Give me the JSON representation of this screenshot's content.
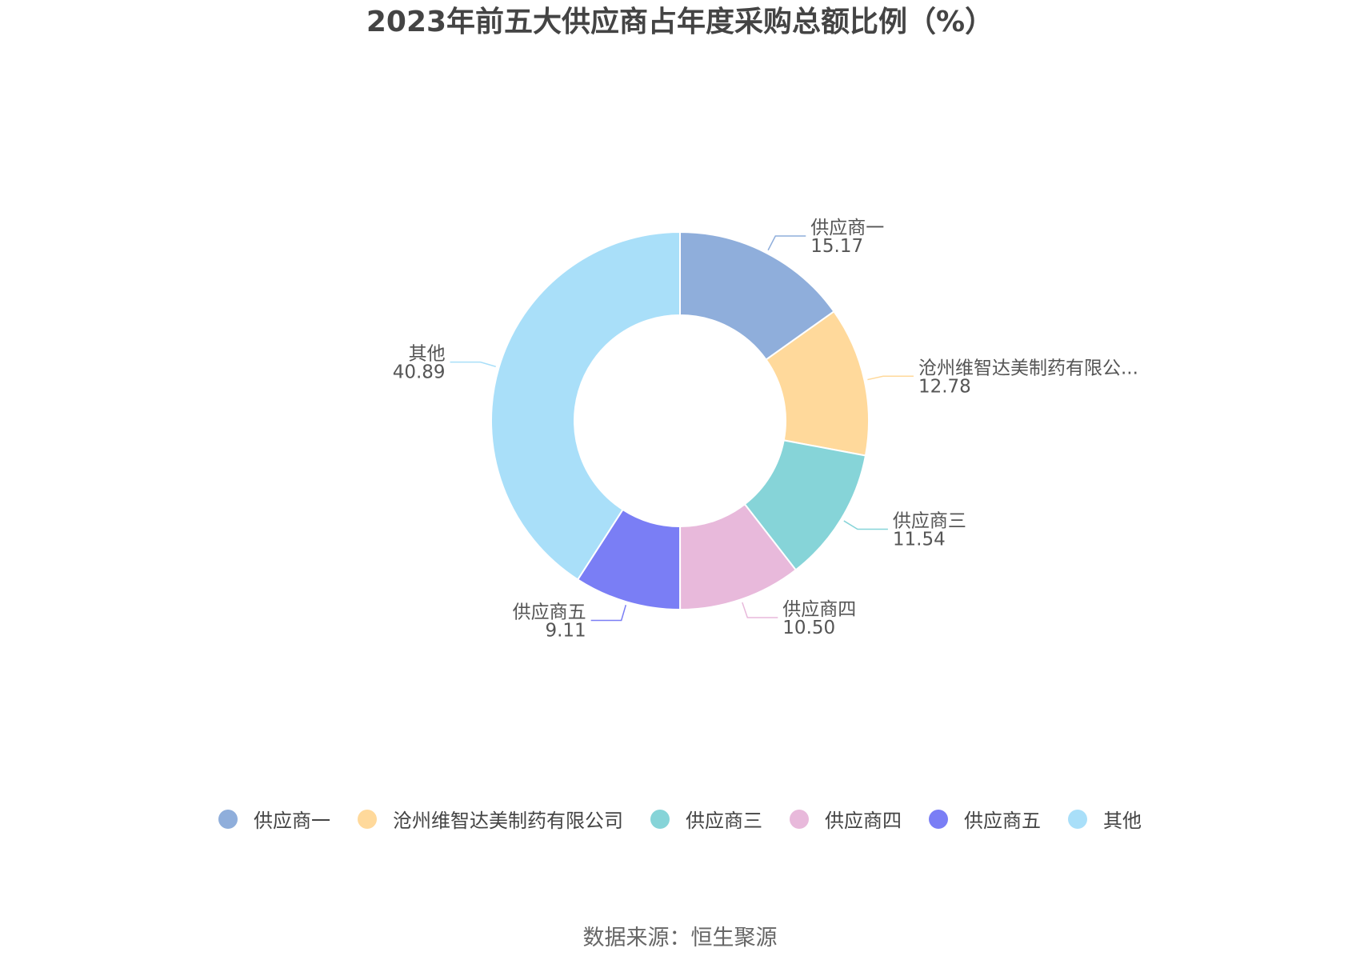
{
  "chart_data": {
    "type": "pie",
    "title": "2023年前五大供应商占年度采购总额比例（%）",
    "slices": [
      {
        "label": "供应商一",
        "chart_label": "供应商一",
        "value": 15.17,
        "value_label": "15.17",
        "color": "#8FAEDB"
      },
      {
        "label": "沧州维智达美制药有限公司",
        "chart_label": "沧州维智达美制药有限公...",
        "value": 12.78,
        "value_label": "12.78",
        "color": "#FFD99B"
      },
      {
        "label": "供应商三",
        "chart_label": "供应商三",
        "value": 11.54,
        "value_label": "11.54",
        "color": "#86D4D8"
      },
      {
        "label": "供应商四",
        "chart_label": "供应商四",
        "value": 10.5,
        "value_label": "10.50",
        "color": "#E8B9DB"
      },
      {
        "label": "供应商五",
        "chart_label": "供应商五",
        "value": 9.11,
        "value_label": "9.11",
        "color": "#7A7EF5"
      },
      {
        "label": "其他",
        "chart_label": "其他",
        "value": 40.89,
        "value_label": "40.89",
        "color": "#A9DFF9"
      }
    ],
    "legend_position": "bottom"
  },
  "source": "数据来源：恒生聚源"
}
